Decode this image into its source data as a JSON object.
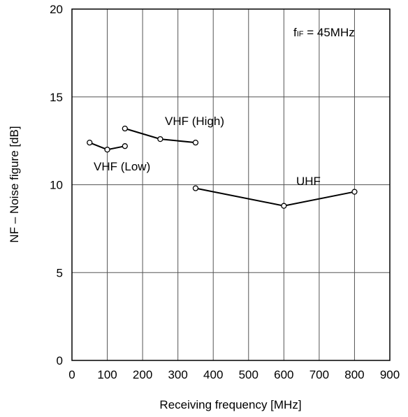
{
  "chart_data": {
    "type": "line",
    "title": "",
    "xlabel": "Receiving frequency [MHz]",
    "ylabel": "NF – Noise figure [dB]",
    "xlim": [
      0,
      900
    ],
    "ylim": [
      0,
      20
    ],
    "xticks": [
      "0",
      "100",
      "200",
      "300",
      "400",
      "500",
      "600",
      "700",
      "800",
      "900"
    ],
    "yticks": [
      "0",
      "5",
      "10",
      "15",
      "20"
    ],
    "grid": true,
    "annotation": {
      "prefix": "f",
      "subscript": "IF",
      "suffix": " = 45MHz"
    },
    "series": [
      {
        "name": "VHF (Low)",
        "x": [
          50,
          100,
          150
        ],
        "y": [
          12.4,
          12.0,
          12.2
        ]
      },
      {
        "name": "VHF (High)",
        "x": [
          150,
          250,
          350
        ],
        "y": [
          13.2,
          12.6,
          12.4
        ]
      },
      {
        "name": "UHF",
        "x": [
          350,
          600,
          800
        ],
        "y": [
          9.8,
          8.8,
          9.6
        ]
      }
    ]
  }
}
